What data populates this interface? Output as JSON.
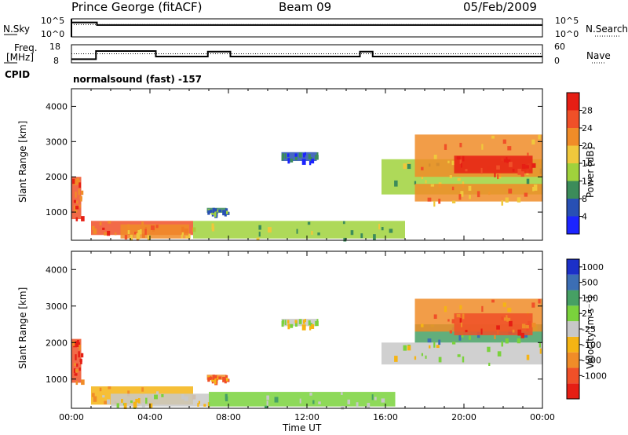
{
  "header": {
    "station": "Prince George (fitACF)",
    "beam": "Beam 09",
    "date": "05/Feb/2009"
  },
  "strip_labels": {
    "nsky": "N.Sky",
    "nsearch": "N.Search",
    "freq": "Freq.",
    "freq_unit": "[MHz]",
    "nave": "Nave",
    "cpid": "CPID",
    "mode": "normalsound (fast)  -157",
    "pow_ticks": [
      "10^5",
      "10^0"
    ],
    "freq_ticks": [
      "18",
      "8"
    ],
    "nave_ticks": [
      "60",
      "0"
    ]
  },
  "colors": {
    "power": [
      "#1c24ff",
      "#2850b4",
      "#3c8c5a",
      "#a0d23c",
      "#f0c83c",
      "#f08c28",
      "#f05028",
      "#e61e14"
    ],
    "velocity": [
      "#e61e14",
      "#f05028",
      "#f08c28",
      "#f5b414",
      "#c8c8c8",
      "#7ad23c",
      "#46a064",
      "#3c6eb4",
      "#1c30c8"
    ]
  },
  "chart_data": [
    {
      "type": "line",
      "name": "noise",
      "x_range": [
        0,
        24
      ],
      "series": [
        {
          "name": "N.Sky",
          "x": [
            0,
            1.3,
            1.3,
            24
          ],
          "y": [
            4,
            4,
            3.3,
            3.3
          ]
        },
        {
          "name": "N.Search",
          "x": [
            0,
            24
          ],
          "y": [
            3.4,
            3.4
          ]
        }
      ],
      "ylim_labels": [
        "10^0",
        "10^5"
      ]
    },
    {
      "type": "line",
      "name": "frequency",
      "x_range": [
        0,
        24
      ],
      "ylim": [
        8,
        18
      ],
      "series": [
        {
          "name": "Freq.",
          "x": [
            0,
            1.25,
            1.25,
            4.3,
            4.3,
            6.95,
            6.95,
            8.1,
            8.1,
            14.7,
            14.7,
            15.35,
            15.35,
            24
          ],
          "y": [
            10,
            10,
            14.5,
            14.5,
            11.5,
            11.5,
            14.2,
            14.2,
            11.5,
            11.5,
            14.2,
            14.2,
            11.5,
            11.5
          ]
        },
        {
          "name": "Nave",
          "x": [
            0,
            24
          ],
          "y": [
            13,
            13
          ]
        }
      ]
    },
    {
      "type": "heatmap",
      "name": "power",
      "xlabel": "",
      "ylabel": "Slant Range [km]",
      "x_range": [
        0,
        24
      ],
      "y_range": [
        200,
        4500
      ],
      "y_ticks": [
        "1000",
        "2000",
        "3000",
        "4000"
      ],
      "colorbar_label": "Power [dB]",
      "colorbar_ticks": [
        "4",
        "8",
        "12",
        "16",
        "20",
        "24",
        "28"
      ],
      "clim": [
        0,
        32
      ],
      "echoes": [
        {
          "t0": 0.0,
          "t1": 0.5,
          "r0": 800,
          "r1": 2000,
          "level": 6
        },
        {
          "t0": 1.0,
          "t1": 6.2,
          "r0": 350,
          "r1": 750,
          "level": 6
        },
        {
          "t0": 2.5,
          "t1": 6.0,
          "r0": 250,
          "r1": 650,
          "level": 5
        },
        {
          "t0": 6.2,
          "t1": 17.0,
          "r0": 250,
          "r1": 750,
          "level": 3
        },
        {
          "t0": 6.9,
          "t1": 7.9,
          "r0": 980,
          "r1": 1120,
          "level": 2
        },
        {
          "t0": 10.7,
          "t1": 12.5,
          "r0": 2450,
          "r1": 2700,
          "level": 1
        },
        {
          "t0": 15.8,
          "t1": 24.0,
          "r0": 1500,
          "r1": 2500,
          "level": 3
        },
        {
          "t0": 17.5,
          "t1": 24.0,
          "r0": 1300,
          "r1": 1800,
          "level": 5
        },
        {
          "t0": 17.5,
          "t1": 24.0,
          "r0": 2000,
          "r1": 3200,
          "level": 5
        },
        {
          "t0": 19.5,
          "t1": 23.5,
          "r0": 2100,
          "r1": 2600,
          "level": 7
        }
      ]
    },
    {
      "type": "heatmap",
      "name": "velocity",
      "xlabel": "Time UT",
      "ylabel": "Slant Range [km]",
      "x_range": [
        0,
        24
      ],
      "y_range": [
        200,
        4500
      ],
      "x_ticks": [
        "00:00",
        "04:00",
        "08:00",
        "12:00",
        "16:00",
        "20:00",
        "00:00"
      ],
      "y_ticks": [
        "1000",
        "2000",
        "3000",
        "4000"
      ],
      "colorbar_label": "Velocity [m s⁻¹]",
      "colorbar_unit_sup": "-1",
      "colorbar_ticks": [
        "1000",
        "500",
        "100",
        "25",
        "-25",
        "-100",
        "-500",
        "-1000"
      ],
      "echoes": [
        {
          "t0": 0.0,
          "t1": 0.5,
          "r0": 900,
          "r1": 2100,
          "level": 1
        },
        {
          "t0": 1.0,
          "t1": 6.2,
          "r0": 300,
          "r1": 800,
          "level": 3
        },
        {
          "t0": 2.0,
          "t1": 7.0,
          "r0": 250,
          "r1": 600,
          "level": 4
        },
        {
          "t0": 7.0,
          "t1": 16.5,
          "r0": 250,
          "r1": 650,
          "level": 5
        },
        {
          "t0": 6.9,
          "t1": 7.9,
          "r0": 980,
          "r1": 1120,
          "level": 2
        },
        {
          "t0": 10.7,
          "t1": 12.5,
          "r0": 2450,
          "r1": 2650,
          "level": 4
        },
        {
          "t0": 15.8,
          "t1": 24.0,
          "r0": 1400,
          "r1": 2000,
          "level": 4
        },
        {
          "t0": 17.5,
          "t1": 24.0,
          "r0": 2000,
          "r1": 2500,
          "level": 6
        },
        {
          "t0": 17.5,
          "t1": 24.0,
          "r0": 2300,
          "r1": 3200,
          "level": 2
        },
        {
          "t0": 19.5,
          "t1": 23.5,
          "r0": 2200,
          "r1": 2800,
          "level": 1
        }
      ]
    }
  ]
}
